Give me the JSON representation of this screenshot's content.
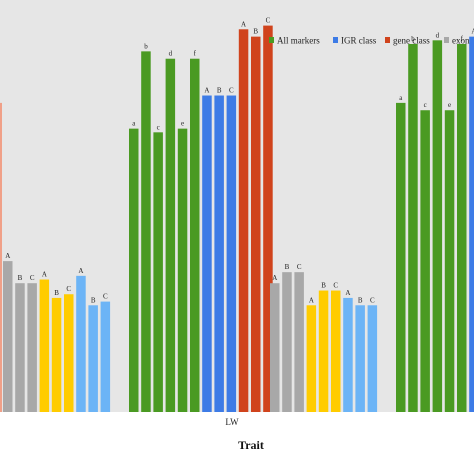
{
  "chart_data": {
    "type": "bar",
    "xlabel": "Trait",
    "ylabel": "",
    "ylim": [
      0,
      100
    ],
    "categories": [
      "LW"
    ],
    "legend": {
      "position": "top-right",
      "entries": [
        {
          "name": "All markers",
          "color": "#4a9a22"
        },
        {
          "name": "IGR class",
          "color": "#3d7be6"
        },
        {
          "name": "gene class",
          "color": "#d0431c"
        },
        {
          "name": "exon",
          "color": "#a8a8a8"
        }
      ]
    },
    "colors": {
      "All markers": "#4a9a22",
      "IGR class": "#3d7be6",
      "gene class": "#d0431c",
      "exon": "#a8a8a8",
      "yellow": "#ffcc00",
      "lightblue": "#6cb4f6",
      "salmon": "#f0a088",
      "panel": "#e6e6e6"
    },
    "groups": [
      {
        "bars": [
          {
            "value": 41,
            "label": "A",
            "color": "exon"
          },
          {
            "value": 35,
            "label": "B",
            "color": "exon"
          },
          {
            "value": 35,
            "label": "C",
            "color": "exon"
          },
          {
            "value": 36,
            "label": "A",
            "color": "yellow"
          },
          {
            "value": 31,
            "label": "B",
            "color": "yellow"
          },
          {
            "value": 32,
            "label": "C",
            "color": "yellow"
          },
          {
            "value": 37,
            "label": "A",
            "color": "lightblue"
          },
          {
            "value": 29,
            "label": "B",
            "color": "lightblue"
          },
          {
            "value": 30,
            "label": "C",
            "color": "lightblue"
          }
        ]
      },
      {
        "bars": [
          {
            "value": 77,
            "label": "a",
            "color": "All markers"
          },
          {
            "value": 98,
            "label": "b",
            "color": "All markers"
          },
          {
            "value": 76,
            "label": "c",
            "color": "All markers"
          },
          {
            "value": 96,
            "label": "d",
            "color": "All markers"
          },
          {
            "value": 77,
            "label": "e",
            "color": "All markers"
          },
          {
            "value": 96,
            "label": "f",
            "color": "All markers"
          },
          {
            "value": 86,
            "label": "A",
            "color": "IGR class"
          },
          {
            "value": 86,
            "label": "B",
            "color": "IGR class"
          },
          {
            "value": 86,
            "label": "C",
            "color": "IGR class"
          },
          {
            "value": 104,
            "label": "A",
            "color": "gene class"
          },
          {
            "value": 102,
            "label": "B",
            "color": "gene class"
          },
          {
            "value": 105,
            "label": "C",
            "color": "gene class"
          }
        ]
      },
      {
        "bars": [
          {
            "value": 35,
            "label": "A",
            "color": "exon"
          },
          {
            "value": 38,
            "label": "B",
            "color": "exon"
          },
          {
            "value": 38,
            "label": "C",
            "color": "exon"
          },
          {
            "value": 29,
            "label": "A",
            "color": "yellow"
          },
          {
            "value": 33,
            "label": "B",
            "color": "yellow"
          },
          {
            "value": 33,
            "label": "C",
            "color": "yellow"
          },
          {
            "value": 31,
            "label": "A",
            "color": "lightblue"
          },
          {
            "value": 29,
            "label": "B",
            "color": "lightblue"
          },
          {
            "value": 29,
            "label": "C",
            "color": "lightblue"
          }
        ]
      },
      {
        "bars": [
          {
            "value": 84,
            "label": "a",
            "color": "All markers"
          },
          {
            "value": 100,
            "label": "b",
            "color": "All markers"
          },
          {
            "value": 82,
            "label": "c",
            "color": "All markers"
          },
          {
            "value": 101,
            "label": "d",
            "color": "All markers"
          },
          {
            "value": 82,
            "label": "e",
            "color": "All markers"
          },
          {
            "value": 100,
            "label": "f",
            "color": "All markers"
          },
          {
            "value": 102,
            "label": "A",
            "color": "IGR class"
          }
        ]
      }
    ],
    "partial_bar": {
      "value": 84,
      "color": "salmon"
    }
  }
}
